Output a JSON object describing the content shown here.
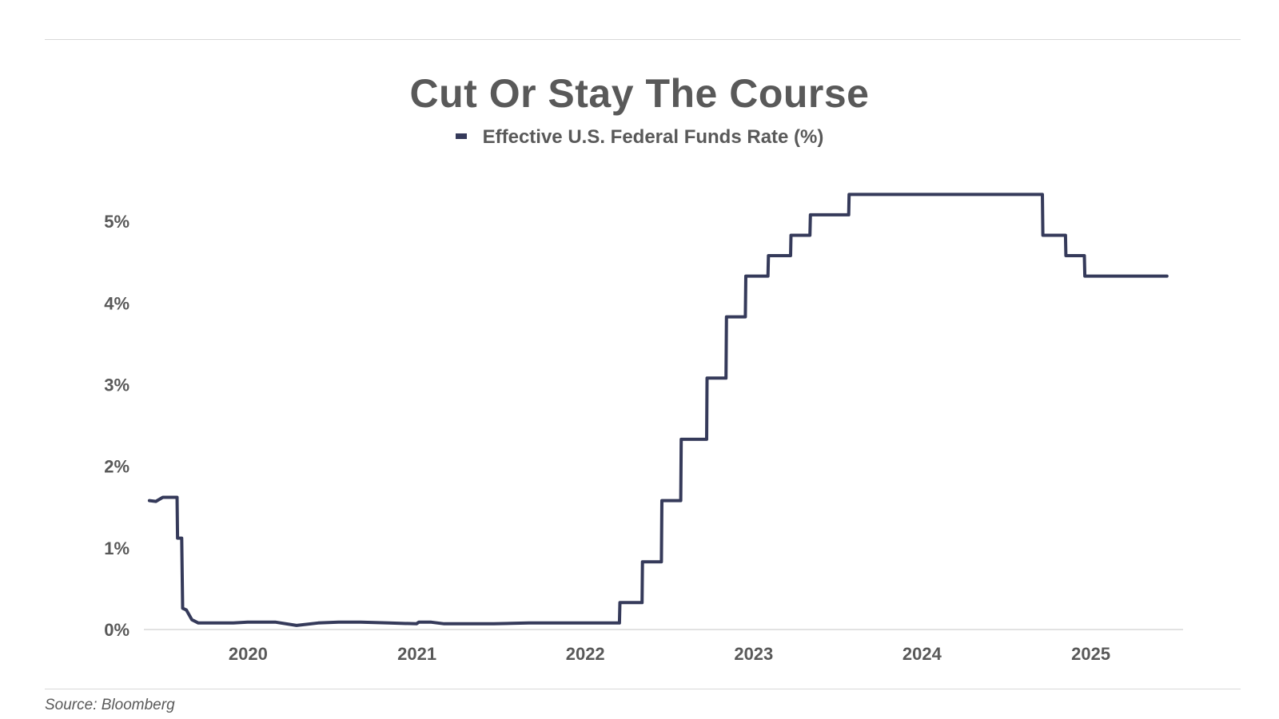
{
  "colors": {
    "line": "#353a5a",
    "text": "#595959",
    "axis": "#d9d9d9"
  },
  "source": "Source: Bloomberg",
  "chart_data": {
    "type": "line",
    "title": "Cut Or Stay The Course",
    "legend_position": "top-center",
    "grid": false,
    "ylim": [
      0,
      5.5
    ],
    "y_ticks": [
      0,
      1,
      2,
      3,
      4,
      5
    ],
    "y_tick_labels": [
      "0%",
      "1%",
      "2%",
      "3%",
      "4%",
      "5%"
    ],
    "xlim": [
      "2019-05-20",
      "2025-07-20"
    ],
    "x_ticks": [
      "2020-01-01",
      "2021-01-01",
      "2022-01-01",
      "2023-01-01",
      "2024-01-01",
      "2025-01-01"
    ],
    "x_tick_labels": [
      "2020",
      "2021",
      "2022",
      "2023",
      "2024",
      "2025"
    ],
    "series": [
      {
        "name": "Effective U.S. Federal Funds Rate (%)",
        "x": [
          "2019-06-01",
          "2019-06-15",
          "2019-06-30",
          "2019-07-15",
          "2019-07-31",
          "2019-08-01",
          "2019-08-05",
          "2019-08-10",
          "2019-08-12",
          "2019-08-20",
          "2019-09-01",
          "2019-09-15",
          "2019-10-01",
          "2019-10-30",
          "2019-11-30",
          "2019-12-31",
          "2020-01-30",
          "2020-03-01",
          "2020-04-15",
          "2020-06-01",
          "2020-07-15",
          "2020-09-01",
          "2020-11-01",
          "2020-12-31",
          "2021-01-05",
          "2021-02-01",
          "2021-03-01",
          "2021-04-01",
          "2021-06-17",
          "2021-09-01",
          "2021-12-31",
          "2022-03-16",
          "2022-03-17",
          "2022-05-04",
          "2022-05-05",
          "2022-06-15",
          "2022-06-16",
          "2022-07-27",
          "2022-07-28",
          "2022-09-21",
          "2022-09-22",
          "2022-11-02",
          "2022-11-03",
          "2022-12-14",
          "2022-12-15",
          "2023-02-01",
          "2023-02-02",
          "2023-03-22",
          "2023-03-23",
          "2023-05-03",
          "2023-05-04",
          "2023-07-26",
          "2023-07-27",
          "2024-09-18",
          "2024-09-19",
          "2024-11-07",
          "2024-11-08",
          "2024-12-18",
          "2024-12-19",
          "2025-03-01",
          "2025-06-15"
        ],
        "y": [
          1.58,
          1.57,
          1.62,
          1.62,
          1.62,
          1.12,
          1.12,
          1.12,
          0.26,
          0.24,
          0.12,
          0.08,
          0.08,
          0.08,
          0.08,
          0.09,
          0.09,
          0.09,
          0.05,
          0.08,
          0.09,
          0.09,
          0.08,
          0.07,
          0.09,
          0.09,
          0.07,
          0.07,
          0.07,
          0.08,
          0.08,
          0.08,
          0.33,
          0.33,
          0.83,
          0.83,
          1.58,
          1.58,
          2.33,
          2.33,
          3.08,
          3.08,
          3.83,
          3.83,
          4.33,
          4.33,
          4.58,
          4.58,
          4.83,
          4.83,
          5.08,
          5.08,
          5.33,
          5.33,
          4.83,
          4.83,
          4.58,
          4.58,
          4.33,
          4.33,
          4.33
        ]
      }
    ]
  }
}
